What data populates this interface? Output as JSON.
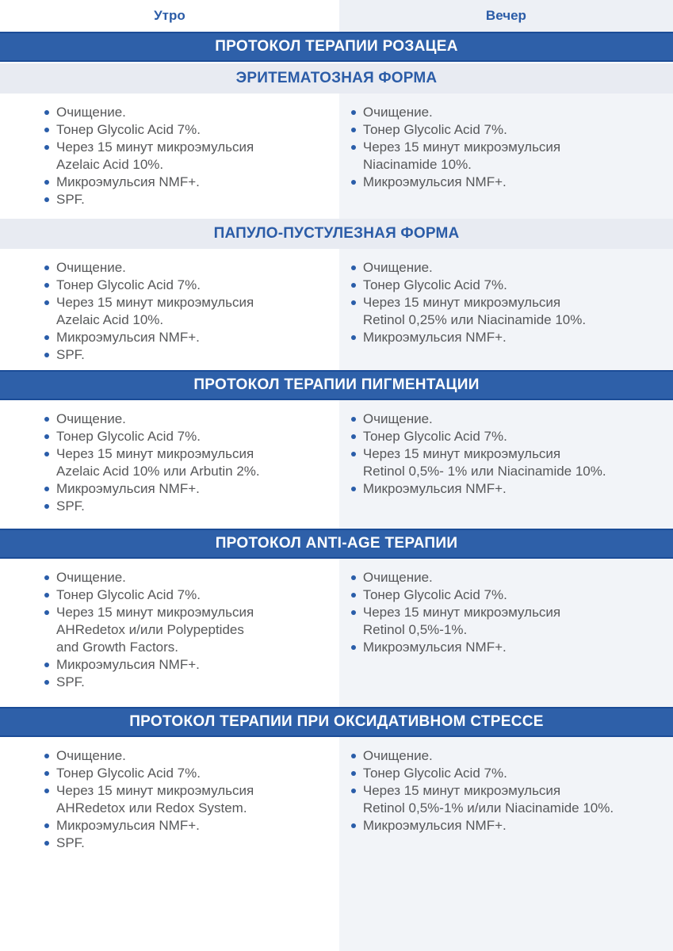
{
  "header": {
    "morning_label": "Утро",
    "evening_label": "Вечер"
  },
  "colors": {
    "primary_blue": "#2e60a9",
    "banner_border_blue": "#1b4c97",
    "accent_text_blue": "#2b5ca7",
    "light_banner_bg": "#e8ebf2",
    "evening_column_bg": "#f2f4f8",
    "body_text": "#57585a"
  },
  "sections": {
    "rosacea_title": "ПРОТОКОЛ ТЕРАПИИ РОЗАЦЕА",
    "erythematous": {
      "subtitle": "ЭРИТЕМАТОЗНАЯ ФОРМА",
      "morning": [
        "Очищение.",
        "Тонер Glycolic Acid 7%.",
        "Через 15 минут микроэмульсия\nAzelaic Acid 10%.",
        "Микроэмульсия NMF+.",
        "SPF."
      ],
      "evening": [
        "Очищение.",
        "Тонер Glycolic Acid 7%.",
        "Через 15 минут микроэмульсия\nNiacinamide 10%.",
        "Микроэмульсия NMF+."
      ]
    },
    "papulopustular": {
      "subtitle": "ПАПУЛО-ПУСТУЛЕЗНАЯ ФОРМА",
      "morning": [
        "Очищение.",
        "Тонер Glycolic Acid 7%.",
        "Через 15 минут микроэмульсия\nAzelaic Acid 10%.",
        "Микроэмульсия NMF+.",
        "SPF."
      ],
      "evening": [
        "Очищение.",
        "Тонер Glycolic Acid 7%.",
        "Через 15 минут микроэмульсия\nRetinol 0,25% или Niacinamide 10%.",
        "Микроэмульсия NMF+."
      ]
    },
    "pigmentation": {
      "title": "ПРОТОКОЛ ТЕРАПИИ ПИГМЕНТАЦИИ",
      "morning": [
        "Очищение.",
        "Тонер Glycolic Acid 7%.",
        "Через 15 минут микроэмульсия\nAzelaic Acid 10% или Arbutin 2%.",
        "Микроэмульсия NMF+.",
        "SPF."
      ],
      "evening": [
        "Очищение.",
        "Тонер Glycolic Acid 7%.",
        "Через 15 минут микроэмульсия\nRetinol 0,5%- 1% или Niacinamide 10%.",
        "Микроэмульсия NMF+."
      ]
    },
    "anti_age": {
      "title": "ПРОТОКОЛ ANTI-AGE ТЕРАПИИ",
      "morning": [
        "Очищение.",
        "Тонер Glycolic Acid 7%.",
        "Через 15 минут микроэмульсия\nAHRedetox и/или Polypeptides\nand Growth Factors.",
        "Микроэмульсия NMF+.",
        "SPF."
      ],
      "evening": [
        "Очищение.",
        "Тонер Glycolic Acid 7%.",
        "Через 15 минут микроэмульсия\nRetinol 0,5%-1%.",
        "Микроэмульсия NMF+."
      ]
    },
    "oxidative_stress": {
      "title": "ПРОТОКОЛ ТЕРАПИИ ПРИ ОКСИДАТИВНОМ СТРЕССЕ",
      "morning": [
        "Очищение.",
        "Тонер Glycolic Acid 7%.",
        "Через 15 минут микроэмульсия\nAHRedetox или Redox System.",
        "Микроэмульсия NMF+.",
        "SPF."
      ],
      "evening": [
        "Очищение.",
        "Тонер Glycolic Acid 7%.",
        "Через 15 минут микроэмульсия\nRetinol 0,5%-1% и/или Niacinamide 10%.",
        "Микроэмульсия NMF+."
      ]
    }
  }
}
